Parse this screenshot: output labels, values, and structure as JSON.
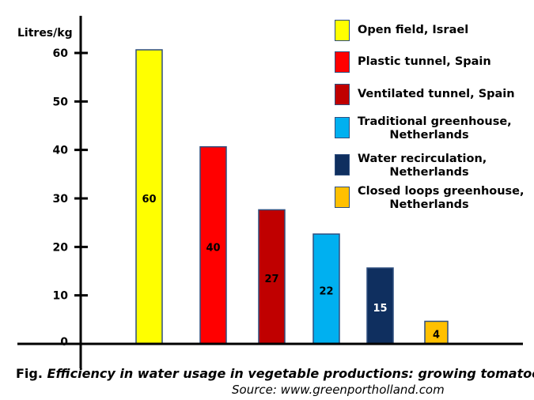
{
  "chart_data": {
    "type": "bar",
    "ylabel": "Litres/kg",
    "ylim": [
      0,
      60
    ],
    "yticks": [
      0,
      10,
      20,
      30,
      40,
      50,
      60
    ],
    "categories": [
      "Open field, Israel",
      "Plastic tunnel, Spain",
      "Ventilated tunnel, Spain",
      "Traditional greenhouse,\n        Netherlands",
      "Water recirculation,\n        Netherlands",
      "Closed loops greenhouse,\n        Netherlands"
    ],
    "values": [
      60,
      40,
      27,
      22,
      15,
      4
    ],
    "data_labels": [
      "60",
      "40",
      "27",
      "22",
      "15",
      "4"
    ],
    "colors": [
      "#ffff00",
      "#ff0000",
      "#c00000",
      "#00b0f0",
      "#0f2f5f",
      "#ffc000"
    ],
    "label_colors": [
      "#000000",
      "#000000",
      "#000000",
      "#000000",
      "#ffffff",
      "#000000"
    ],
    "legend_placement": "top-right",
    "grid": false
  },
  "caption": {
    "prefix": "Fig.",
    "title": "Efficiency in water usage in vegetable productions: growing tomatoes."
  },
  "source": "Source: www.greenportholland.com"
}
